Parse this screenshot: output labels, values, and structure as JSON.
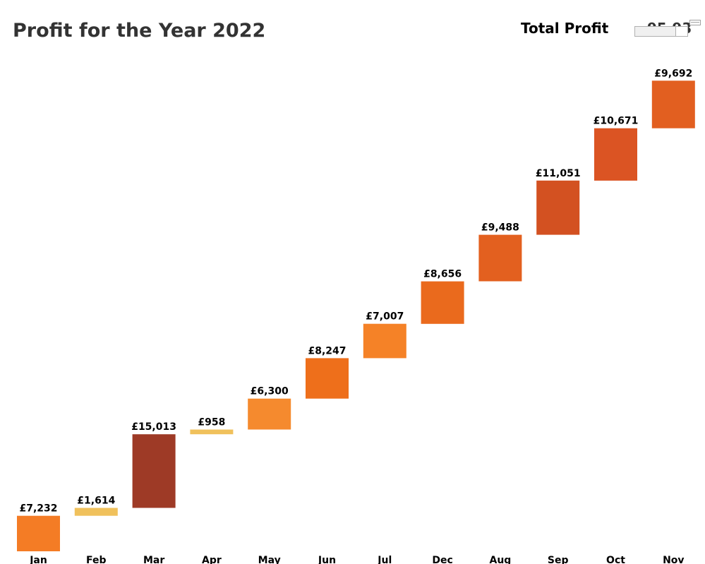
{
  "header": {
    "title": "Profit for the Year 2022",
    "total_label": "Total Profit",
    "total_value": "95,93"
  },
  "chart_data": {
    "type": "bar",
    "subtype": "waterfall",
    "title": "Profit for the Year 2022",
    "xlabel": "",
    "ylabel": "",
    "categories": [
      "Jan",
      "Feb",
      "Mar",
      "Apr",
      "May",
      "Jun",
      "Jul",
      "Dec",
      "Aug",
      "Sep",
      "Oct",
      "Nov"
    ],
    "values": [
      7232,
      1614,
      15013,
      958,
      6300,
      8247,
      7007,
      8656,
      9488,
      11051,
      10671,
      9692
    ],
    "value_labels": [
      "£7,232",
      "£1,614",
      "£15,013",
      "£958",
      "£6,300",
      "£8,247",
      "£7,007",
      "£8,656",
      "£9,488",
      "£11,051",
      "£10,671",
      "£9,692"
    ],
    "bar_colors": [
      "#F47C25",
      "#F0C15C",
      "#9E3A26",
      "#F0C15C",
      "#F58A2E",
      "#EE6F1B",
      "#F58227",
      "#EA6A1D",
      "#E3601F",
      "#D35121",
      "#DB5423",
      "#E25F20"
    ],
    "ylim": [
      0,
      105000
    ],
    "grid": false,
    "legend": "none"
  }
}
